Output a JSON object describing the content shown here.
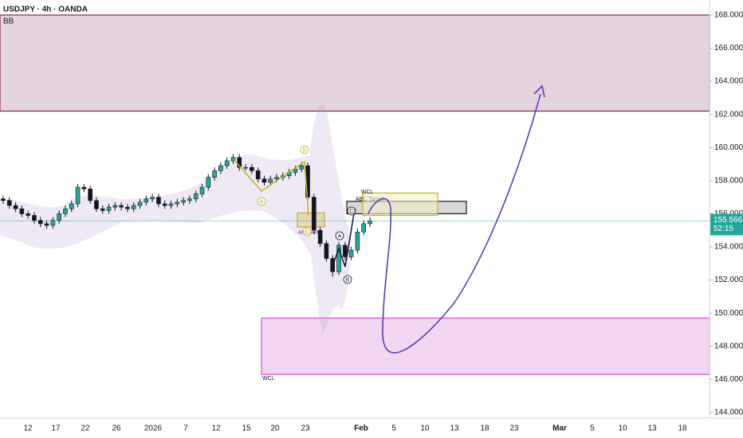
{
  "chart_data": {
    "type": "candlestick",
    "title": "USDJPY · 4h · OANDA",
    "indicator": "BB",
    "ylim": [
      143.66,
      168.91
    ],
    "yticks": [
      {
        "value": 144,
        "label": "144.000"
      },
      {
        "value": 146,
        "label": "146.000"
      },
      {
        "value": 148,
        "label": "148.000"
      },
      {
        "value": 150,
        "label": "150.000"
      },
      {
        "value": 152,
        "label": "152.000"
      },
      {
        "value": 154,
        "label": "154.000"
      },
      {
        "value": 156,
        "label": "156.000"
      },
      {
        "value": 158,
        "label": "158.000"
      },
      {
        "value": 160,
        "label": "160.000"
      },
      {
        "value": 162,
        "label": "162.000"
      },
      {
        "value": 164,
        "label": "164.000"
      },
      {
        "value": 166,
        "label": "166.000"
      },
      {
        "value": 168,
        "label": "168.000"
      }
    ],
    "time_labels": [
      "12",
      "17",
      "22",
      "26",
      "2026",
      "7",
      "12",
      "15",
      "20",
      "23",
      "Feb",
      "5",
      "10",
      "13",
      "18",
      "23",
      "Mar",
      "5",
      "10",
      "13",
      "18"
    ],
    "up_color": "#26a69a",
    "down_color": "#131722",
    "open": [
      156.9,
      156.8,
      156.5,
      156.3,
      156.0,
      155.9,
      155.6,
      155.4,
      155.3,
      155.6,
      156.0,
      156.3,
      156.6,
      157.6,
      157.5,
      156.8,
      156.3,
      156.2,
      156.4,
      156.5,
      156.4,
      156.3,
      156.5,
      156.7,
      156.9,
      157.0,
      156.6,
      156.5,
      156.6,
      156.7,
      156.8,
      156.9,
      157.2,
      157.6,
      158.2,
      158.6,
      158.9,
      159.2,
      159.4,
      158.8,
      158.8,
      158.6,
      158.1,
      157.9,
      158.1,
      158.2,
      158.3,
      158.5,
      158.7,
      158.9,
      157.0,
      155.0,
      154.2,
      153.3,
      152.5,
      154.1,
      153.4,
      153.8,
      154.9,
      155.4
    ],
    "high": [
      157.1,
      157.0,
      156.7,
      156.5,
      156.2,
      156.1,
      155.8,
      155.6,
      155.8,
      156.2,
      156.5,
      156.8,
      157.8,
      157.8,
      157.7,
      157.0,
      156.5,
      156.6,
      156.7,
      156.7,
      156.6,
      156.7,
      156.9,
      157.1,
      157.2,
      157.2,
      156.8,
      156.8,
      156.9,
      157.0,
      157.1,
      157.4,
      157.8,
      158.4,
      158.8,
      159.1,
      159.4,
      159.6,
      159.6,
      159.0,
      159.0,
      158.8,
      158.3,
      158.3,
      158.4,
      158.5,
      158.7,
      158.9,
      159.1,
      159.1,
      157.2,
      155.2,
      154.4,
      153.5,
      154.3,
      154.3,
      154.0,
      155.1,
      155.6,
      155.8
    ],
    "low": [
      156.6,
      156.3,
      156.1,
      155.8,
      155.7,
      155.4,
      155.2,
      155.1,
      155.1,
      155.4,
      155.8,
      156.1,
      156.4,
      157.3,
      156.6,
      156.1,
      156.0,
      156.0,
      156.2,
      156.2,
      156.1,
      156.1,
      156.3,
      156.5,
      156.7,
      156.4,
      156.3,
      156.3,
      156.4,
      156.5,
      156.6,
      156.7,
      157.0,
      157.4,
      158.0,
      158.4,
      158.7,
      159.0,
      158.6,
      158.6,
      158.4,
      157.9,
      157.7,
      157.7,
      157.9,
      158.0,
      158.1,
      158.3,
      158.5,
      156.8,
      154.8,
      154.0,
      153.1,
      152.2,
      152.3,
      153.2,
      153.2,
      153.6,
      154.7,
      155.2
    ],
    "close": [
      156.8,
      156.5,
      156.3,
      156.0,
      155.9,
      155.6,
      155.4,
      155.3,
      155.6,
      156.0,
      156.3,
      156.6,
      157.6,
      157.5,
      156.8,
      156.3,
      156.2,
      156.4,
      156.5,
      156.4,
      156.3,
      156.5,
      156.7,
      156.9,
      157.0,
      156.6,
      156.5,
      156.6,
      156.7,
      156.8,
      156.9,
      157.2,
      157.6,
      158.2,
      158.6,
      158.9,
      159.2,
      159.4,
      158.8,
      158.8,
      158.6,
      158.1,
      157.9,
      158.1,
      158.2,
      158.3,
      158.5,
      158.7,
      158.9,
      157.0,
      155.0,
      154.2,
      153.3,
      152.5,
      154.1,
      153.4,
      153.8,
      154.9,
      155.4,
      155.566
    ],
    "last_price": {
      "value": 155.566,
      "label": "155.566"
    },
    "countdown": "52:15",
    "zones": [
      {
        "low": 162.2,
        "high": 168.0,
        "color": "#e3d4e0",
        "border": "#7b2a4e"
      },
      {
        "low": 146.3,
        "high": 149.7,
        "color": "#f3d7f1",
        "border": "#e040d8",
        "label": "WCL"
      },
      {
        "low": 156.0,
        "high": 156.75,
        "color": "#d6d6d6",
        "border": "#131722",
        "label": "ABC Target"
      },
      {
        "low": 155.9,
        "high": 157.25,
        "color": "#f4efc8",
        "border": "#c7b01e",
        "label": "WCL"
      },
      {
        "low": 155.2,
        "high": 156.05,
        "color": "#f4e8b0",
        "border": "#c7b01e",
        "label": "ABC Target"
      }
    ],
    "wave_labels": [
      "A",
      "B",
      "C",
      "A",
      "B",
      "C"
    ]
  }
}
